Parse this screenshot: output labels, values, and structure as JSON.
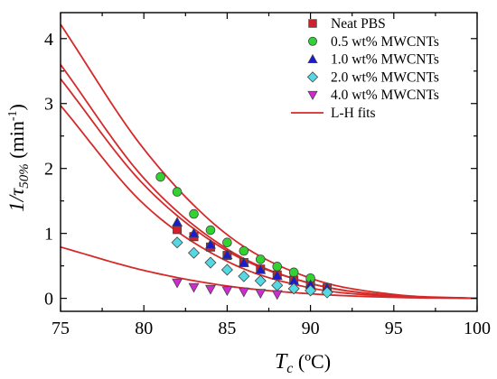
{
  "chart_data": {
    "type": "scatter",
    "xlabel_main": "T",
    "xlabel_sub": "c",
    "xlabel_unit": " (ºC)",
    "ylabel_main": "1/τ",
    "ylabel_sub": "50%",
    "ylabel_unit": " (min",
    "ylabel_sup": "-1",
    "ylabel_close": ")",
    "xlim": [
      75,
      100
    ],
    "ylim": [
      -0.2,
      4.4
    ],
    "xticks": [
      75,
      80,
      85,
      90,
      95,
      100
    ],
    "yticks": [
      0,
      1,
      2,
      3,
      4
    ],
    "legend_position": "top-right",
    "fit_label": "L-H fits",
    "fit_color": "#d42a2a",
    "series": [
      {
        "name": "Neat PBS",
        "marker": "square",
        "color": "#d21f2b",
        "x": [
          82,
          83,
          84,
          85,
          86,
          87,
          88,
          89,
          90,
          91
        ],
        "y": [
          1.06,
          0.95,
          0.79,
          0.66,
          0.55,
          0.45,
          0.36,
          0.28,
          0.22,
          0.16
        ],
        "fit": {
          "x": [
            75,
            80,
            85,
            90,
            95,
            100
          ],
          "y": [
            3.6,
            1.85,
            0.76,
            0.23,
            0.04,
            0.0
          ]
        }
      },
      {
        "name": "0.5 wt% MWCNTs",
        "marker": "circle",
        "color": "#33d233",
        "x": [
          81,
          82,
          83,
          84,
          85,
          86,
          87,
          88,
          89,
          90
        ],
        "y": [
          1.87,
          1.64,
          1.3,
          1.05,
          0.86,
          0.73,
          0.6,
          0.49,
          0.4,
          0.31
        ],
        "fit": {
          "x": [
            75,
            80,
            85,
            90,
            95,
            100
          ],
          "y": [
            4.22,
            2.3,
            0.98,
            0.31,
            0.06,
            0.0
          ]
        }
      },
      {
        "name": "1.0 wt% MWCNTs",
        "marker": "triangle-up",
        "color": "#1a1ad2",
        "x": [
          82,
          83,
          84,
          85,
          86,
          87,
          88,
          89,
          90,
          91
        ],
        "y": [
          1.17,
          1.0,
          0.83,
          0.67,
          0.55,
          0.44,
          0.35,
          0.27,
          0.21,
          0.16
        ],
        "fit": {
          "x": [
            75,
            80,
            85,
            90,
            95,
            100
          ],
          "y": [
            3.38,
            1.75,
            0.73,
            0.23,
            0.04,
            0.0
          ]
        }
      },
      {
        "name": "2.0 wt% MWCNTs",
        "marker": "diamond",
        "color": "#55d8e2",
        "x": [
          82,
          83,
          84,
          85,
          86,
          87,
          88,
          89,
          90,
          91
        ],
        "y": [
          0.86,
          0.7,
          0.55,
          0.44,
          0.34,
          0.27,
          0.2,
          0.15,
          0.12,
          0.09
        ],
        "fit": {
          "x": [
            75,
            80,
            85,
            90,
            95,
            100
          ],
          "y": [
            2.97,
            1.45,
            0.57,
            0.16,
            0.03,
            0.0
          ]
        }
      },
      {
        "name": "4.0 wt% MWCNTs",
        "marker": "triangle-down",
        "color": "#d22ad2",
        "x": [
          82,
          83,
          84,
          85,
          86,
          87,
          88
        ],
        "y": [
          0.24,
          0.17,
          0.14,
          0.12,
          0.1,
          0.08,
          0.06
        ],
        "fit": {
          "x": [
            75,
            80,
            85,
            90,
            95,
            100
          ],
          "y": [
            0.79,
            0.43,
            0.19,
            0.07,
            0.015,
            0.0
          ]
        }
      }
    ]
  }
}
